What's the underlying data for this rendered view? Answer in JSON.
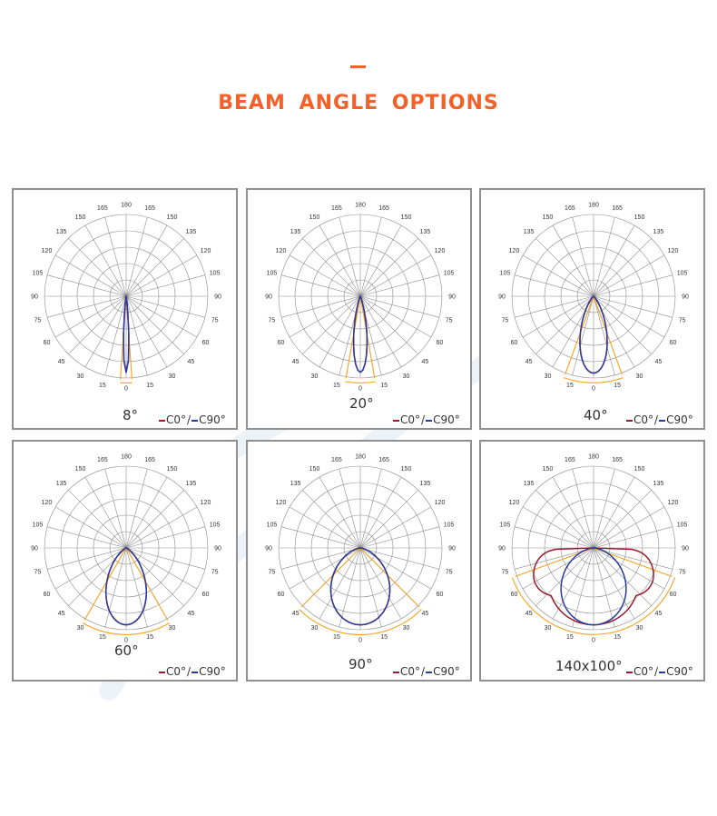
{
  "page": {
    "title": "BEAM ANGLE OPTIONS",
    "colors": {
      "accent": "#f2612a",
      "panel_border": "#8f8f8f",
      "grid": "#8c8c8c",
      "c0": "#9b1b2c",
      "c90": "#2a3b9e",
      "beam_marker": "#f5a11e"
    }
  },
  "chart_data": [
    {
      "type": "polar",
      "title": "8°",
      "beam_angle": 8,
      "angle_labels": [
        "0",
        "15",
        "30",
        "45",
        "60",
        "75",
        "90",
        "105",
        "120",
        "135",
        "150",
        "165",
        "180"
      ],
      "legend": {
        "c0": "C0°",
        "sep": "/",
        "c90": "C90°"
      },
      "series": [
        {
          "name": "C0°",
          "color": "#9b1b2c",
          "width": 8
        },
        {
          "name": "C90°",
          "color": "#2a3b9e",
          "width": 8
        }
      ]
    },
    {
      "type": "polar",
      "title": "20°",
      "beam_angle": 20,
      "angle_labels": [
        "0",
        "15",
        "30",
        "45",
        "60",
        "75",
        "90",
        "105",
        "120",
        "135",
        "150",
        "165",
        "180"
      ],
      "legend": {
        "c0": "C0°",
        "sep": "/",
        "c90": "C90°"
      },
      "series": [
        {
          "name": "C0°",
          "color": "#9b1b2c",
          "width": 20
        },
        {
          "name": "C90°",
          "color": "#2a3b9e",
          "width": 20
        }
      ]
    },
    {
      "type": "polar",
      "title": "40°",
      "beam_angle": 40,
      "angle_labels": [
        "0",
        "15",
        "30",
        "45",
        "60",
        "75",
        "90",
        "105",
        "120",
        "135",
        "150",
        "165",
        "180"
      ],
      "legend": {
        "c0": "C0°",
        "sep": "/",
        "c90": "C90°"
      },
      "series": [
        {
          "name": "C0°",
          "color": "#9b1b2c",
          "width": 40
        },
        {
          "name": "C90°",
          "color": "#2a3b9e",
          "width": 40
        }
      ]
    },
    {
      "type": "polar",
      "title": "60°",
      "beam_angle": 60,
      "angle_labels": [
        "0",
        "15",
        "30",
        "45",
        "60",
        "75",
        "90",
        "105",
        "120",
        "135",
        "150",
        "165",
        "180"
      ],
      "legend": {
        "c0": "C0°",
        "sep": "/",
        "c90": "C90°"
      },
      "series": [
        {
          "name": "C0°",
          "color": "#9b1b2c",
          "width": 60
        },
        {
          "name": "C90°",
          "color": "#2a3b9e",
          "width": 60
        }
      ]
    },
    {
      "type": "polar",
      "title": "90°",
      "beam_angle": 90,
      "angle_labels": [
        "0",
        "15",
        "30",
        "45",
        "60",
        "75",
        "90",
        "105",
        "120",
        "135",
        "150",
        "165",
        "180"
      ],
      "legend": {
        "c0": "C0°",
        "sep": "/",
        "c90": "C90°"
      },
      "series": [
        {
          "name": "C0°",
          "color": "#9b1b2c",
          "width": 90
        },
        {
          "name": "C90°",
          "color": "#2a3b9e",
          "width": 90
        }
      ]
    },
    {
      "type": "polar",
      "title": "140x100°",
      "beam_angle": 140,
      "angle_labels": [
        "0",
        "15",
        "30",
        "45",
        "60",
        "75",
        "90",
        "105",
        "120",
        "135",
        "150",
        "165",
        "180"
      ],
      "legend": {
        "c0": "C0°",
        "sep": "/",
        "c90": "C90°"
      },
      "series": [
        {
          "name": "C0°",
          "color": "#9b1b2c",
          "width": 140
        },
        {
          "name": "C90°",
          "color": "#2a3b9e",
          "width": 100
        }
      ]
    }
  ]
}
